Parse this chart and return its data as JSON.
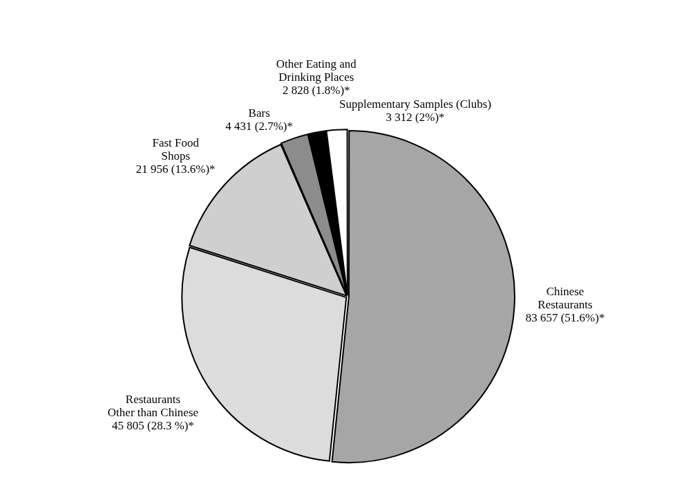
{
  "chart_data": {
    "type": "pie",
    "categories": [
      "Chinese\nRestaurants",
      "Restaurants\nOther than Chinese",
      "Fast Food\nShops",
      "Bars",
      "Other Eating and\nDrinking Places",
      "Supplementary Samples (Clubs)"
    ],
    "values": [
      83657,
      45805,
      21956,
      4431,
      2828,
      3312
    ],
    "value_labels": [
      "83 657 (51.6%)*",
      "45 805 (28.3 %)*",
      "21 956 (13.6%)*",
      "4 431 (2.7%)*",
      "2 828 (1.8%)*",
      "3 312 (2%)*"
    ],
    "colors": [
      "#a6a6a6",
      "#dcdcdc",
      "#cfcfcf",
      "#8c8c8c",
      "#000000",
      "#ffffff"
    ],
    "legend": false
  }
}
